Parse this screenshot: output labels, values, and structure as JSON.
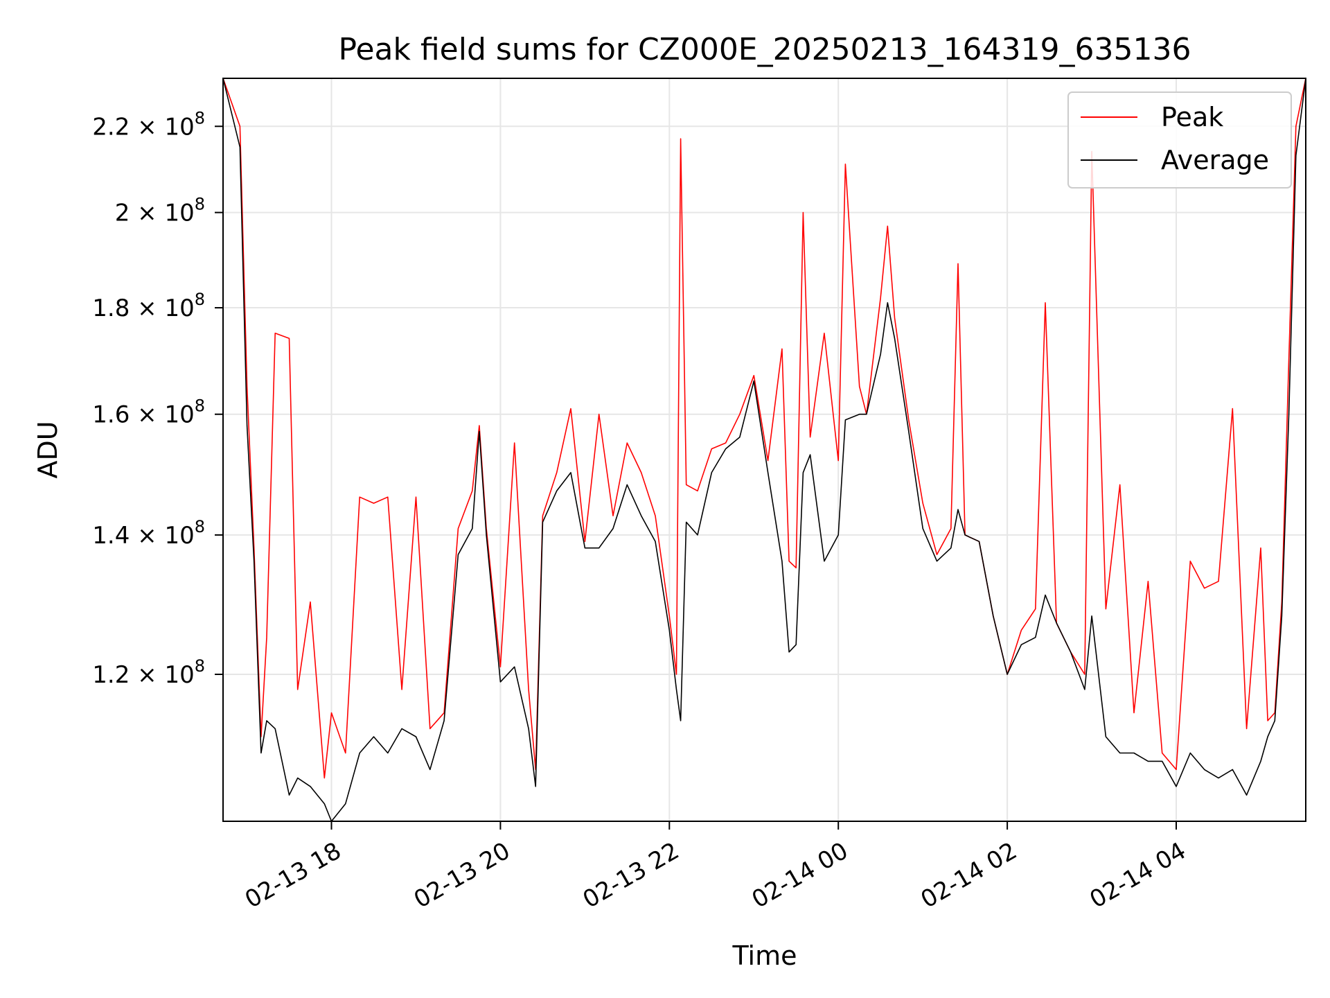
{
  "chart_data": {
    "type": "line",
    "title": "Peak field sums for CZ000E_20250213_164319_635136",
    "xlabel": "Time",
    "ylabel": "ADU",
    "grid": true,
    "legend_position": "top-right",
    "yscale": "log",
    "xlim": [
      "2025-02-13 16:43",
      "2025-02-14 05:32"
    ],
    "ylim": [
      102000000,
      232000000
    ],
    "x_ticks": [
      {
        "value": "2025-02-13 18:00",
        "label": "02-13 18"
      },
      {
        "value": "2025-02-13 20:00",
        "label": "02-13 20"
      },
      {
        "value": "2025-02-13 22:00",
        "label": "02-13 22"
      },
      {
        "value": "2025-02-14 00:00",
        "label": "02-14 00"
      },
      {
        "value": "2025-02-14 02:00",
        "label": "02-14 02"
      },
      {
        "value": "2025-02-14 04:00",
        "label": "02-14 04"
      }
    ],
    "y_ticks": [
      {
        "value": 120000000,
        "mantissa": "1.2",
        "exp": "8"
      },
      {
        "value": 140000000,
        "mantissa": "1.4",
        "exp": "8"
      },
      {
        "value": 160000000,
        "mantissa": "1.6",
        "exp": "8"
      },
      {
        "value": 180000000,
        "mantissa": "1.8",
        "exp": "8"
      },
      {
        "value": 200000000,
        "mantissa": "2",
        "exp": "8"
      },
      {
        "value": 220000000,
        "mantissa": "2.2",
        "exp": "8"
      }
    ],
    "series": [
      {
        "name": "Peak",
        "color": "#ff0000",
        "x": [
          "2025-02-13 16:43",
          "2025-02-13 16:55",
          "2025-02-13 17:00",
          "2025-02-13 17:05",
          "2025-02-13 17:10",
          "2025-02-13 17:14",
          "2025-02-13 17:20",
          "2025-02-13 17:30",
          "2025-02-13 17:36",
          "2025-02-13 17:45",
          "2025-02-13 17:55",
          "2025-02-13 18:00",
          "2025-02-13 18:10",
          "2025-02-13 18:20",
          "2025-02-13 18:30",
          "2025-02-13 18:40",
          "2025-02-13 18:50",
          "2025-02-13 19:00",
          "2025-02-13 19:10",
          "2025-02-13 19:20",
          "2025-02-13 19:30",
          "2025-02-13 19:40",
          "2025-02-13 19:45",
          "2025-02-13 19:50",
          "2025-02-13 20:00",
          "2025-02-13 20:10",
          "2025-02-13 20:20",
          "2025-02-13 20:25",
          "2025-02-13 20:30",
          "2025-02-13 20:40",
          "2025-02-13 20:50",
          "2025-02-13 21:00",
          "2025-02-13 21:10",
          "2025-02-13 21:20",
          "2025-02-13 21:30",
          "2025-02-13 21:40",
          "2025-02-13 21:50",
          "2025-02-13 22:00",
          "2025-02-13 22:05",
          "2025-02-13 22:08",
          "2025-02-13 22:12",
          "2025-02-13 22:20",
          "2025-02-13 22:30",
          "2025-02-13 22:40",
          "2025-02-13 22:50",
          "2025-02-13 23:00",
          "2025-02-13 23:10",
          "2025-02-13 23:20",
          "2025-02-13 23:25",
          "2025-02-13 23:30",
          "2025-02-13 23:35",
          "2025-02-13 23:40",
          "2025-02-13 23:50",
          "2025-02-14 00:00",
          "2025-02-14 00:05",
          "2025-02-14 00:15",
          "2025-02-14 00:20",
          "2025-02-14 00:30",
          "2025-02-14 00:35",
          "2025-02-14 00:40",
          "2025-02-14 00:50",
          "2025-02-14 01:00",
          "2025-02-14 01:10",
          "2025-02-14 01:20",
          "2025-02-14 01:25",
          "2025-02-14 01:30",
          "2025-02-14 01:40",
          "2025-02-14 01:50",
          "2025-02-14 02:00",
          "2025-02-14 02:10",
          "2025-02-14 02:20",
          "2025-02-14 02:27",
          "2025-02-14 02:35",
          "2025-02-14 02:45",
          "2025-02-14 02:55",
          "2025-02-14 03:00",
          "2025-02-14 03:10",
          "2025-02-14 03:20",
          "2025-02-14 03:30",
          "2025-02-14 03:40",
          "2025-02-14 03:50",
          "2025-02-14 04:00",
          "2025-02-14 04:10",
          "2025-02-14 04:20",
          "2025-02-14 04:30",
          "2025-02-14 04:40",
          "2025-02-14 04:50",
          "2025-02-14 05:00",
          "2025-02-14 05:05",
          "2025-02-14 05:10",
          "2025-02-14 05:15",
          "2025-02-14 05:20",
          "2025-02-14 05:25",
          "2025-02-14 05:32"
        ],
        "values": [
          232000000,
          220000000,
          165000000,
          138000000,
          112000000,
          125000000,
          175000000,
          174000000,
          118000000,
          130000000,
          107000000,
          115000000,
          110000000,
          146000000,
          145000000,
          146000000,
          118000000,
          146000000,
          113000000,
          115000000,
          141000000,
          147000000,
          158000000,
          141000000,
          121000000,
          155000000,
          118000000,
          108000000,
          143000000,
          150000000,
          161000000,
          139000000,
          160000000,
          143000000,
          155000000,
          150000000,
          143000000,
          128000000,
          120000000,
          217000000,
          148000000,
          147000000,
          154000000,
          155000000,
          160000000,
          167000000,
          152000000,
          172000000,
          136000000,
          135000000,
          200000000,
          156000000,
          175000000,
          152000000,
          211000000,
          165000000,
          160000000,
          182000000,
          197000000,
          178000000,
          159000000,
          145000000,
          137000000,
          141000000,
          189000000,
          140000000,
          139000000,
          128000000,
          120000000,
          126000000,
          129000000,
          181000000,
          127000000,
          123000000,
          120000000,
          214000000,
          129000000,
          148000000,
          115000000,
          133000000,
          110000000,
          108000000,
          136000000,
          132000000,
          133000000,
          161000000,
          113000000,
          138000000,
          114000000,
          115000000,
          130000000,
          170000000,
          220000000,
          232000000
        ]
      },
      {
        "name": "Average",
        "color": "#000000",
        "x": [
          "2025-02-13 16:43",
          "2025-02-13 16:55",
          "2025-02-13 17:00",
          "2025-02-13 17:05",
          "2025-02-13 17:10",
          "2025-02-13 17:14",
          "2025-02-13 17:20",
          "2025-02-13 17:30",
          "2025-02-13 17:36",
          "2025-02-13 17:45",
          "2025-02-13 17:55",
          "2025-02-13 18:00",
          "2025-02-13 18:10",
          "2025-02-13 18:20",
          "2025-02-13 18:30",
          "2025-02-13 18:40",
          "2025-02-13 18:50",
          "2025-02-13 19:00",
          "2025-02-13 19:10",
          "2025-02-13 19:20",
          "2025-02-13 19:30",
          "2025-02-13 19:40",
          "2025-02-13 19:45",
          "2025-02-13 19:50",
          "2025-02-13 20:00",
          "2025-02-13 20:10",
          "2025-02-13 20:20",
          "2025-02-13 20:25",
          "2025-02-13 20:30",
          "2025-02-13 20:40",
          "2025-02-13 20:50",
          "2025-02-13 21:00",
          "2025-02-13 21:10",
          "2025-02-13 21:20",
          "2025-02-13 21:30",
          "2025-02-13 21:40",
          "2025-02-13 21:50",
          "2025-02-13 22:00",
          "2025-02-13 22:05",
          "2025-02-13 22:08",
          "2025-02-13 22:12",
          "2025-02-13 22:20",
          "2025-02-13 22:30",
          "2025-02-13 22:40",
          "2025-02-13 22:50",
          "2025-02-13 23:00",
          "2025-02-13 23:10",
          "2025-02-13 23:20",
          "2025-02-13 23:25",
          "2025-02-13 23:30",
          "2025-02-13 23:35",
          "2025-02-13 23:40",
          "2025-02-13 23:50",
          "2025-02-14 00:00",
          "2025-02-14 00:05",
          "2025-02-14 00:15",
          "2025-02-14 00:20",
          "2025-02-14 00:30",
          "2025-02-14 00:35",
          "2025-02-14 00:40",
          "2025-02-14 00:50",
          "2025-02-14 01:00",
          "2025-02-14 01:10",
          "2025-02-14 01:20",
          "2025-02-14 01:25",
          "2025-02-14 01:30",
          "2025-02-14 01:40",
          "2025-02-14 01:50",
          "2025-02-14 02:00",
          "2025-02-14 02:10",
          "2025-02-14 02:20",
          "2025-02-14 02:27",
          "2025-02-14 02:35",
          "2025-02-14 02:45",
          "2025-02-14 02:55",
          "2025-02-14 03:00",
          "2025-02-14 03:10",
          "2025-02-14 03:20",
          "2025-02-14 03:30",
          "2025-02-14 03:40",
          "2025-02-14 03:50",
          "2025-02-14 04:00",
          "2025-02-14 04:10",
          "2025-02-14 04:20",
          "2025-02-14 04:30",
          "2025-02-14 04:40",
          "2025-02-14 04:50",
          "2025-02-14 05:00",
          "2025-02-14 05:05",
          "2025-02-14 05:10",
          "2025-02-14 05:15",
          "2025-02-14 05:20",
          "2025-02-14 05:25",
          "2025-02-14 05:32"
        ],
        "values": [
          232000000,
          215000000,
          158000000,
          136000000,
          110000000,
          114000000,
          113000000,
          105000000,
          107000000,
          106000000,
          104000000,
          102000000,
          104000000,
          110000000,
          112000000,
          110000000,
          113000000,
          112000000,
          108000000,
          114000000,
          137000000,
          141000000,
          157000000,
          140000000,
          119000000,
          121000000,
          113000000,
          106000000,
          142000000,
          147000000,
          150000000,
          138000000,
          138000000,
          141000000,
          148000000,
          143000000,
          139000000,
          126000000,
          118000000,
          114000000,
          142000000,
          140000000,
          150000000,
          154000000,
          156000000,
          166000000,
          150000000,
          136000000,
          123000000,
          124000000,
          150000000,
          153000000,
          136000000,
          140000000,
          159000000,
          160000000,
          160000000,
          171000000,
          181000000,
          174000000,
          157000000,
          141000000,
          136000000,
          138000000,
          144000000,
          140000000,
          139000000,
          128000000,
          120000000,
          124000000,
          125000000,
          131000000,
          127000000,
          123000000,
          118000000,
          128000000,
          112000000,
          110000000,
          110000000,
          109000000,
          109000000,
          106000000,
          110000000,
          108000000,
          107000000,
          108000000,
          105000000,
          109000000,
          112000000,
          114000000,
          128000000,
          160000000,
          213000000,
          232000000
        ]
      }
    ]
  }
}
